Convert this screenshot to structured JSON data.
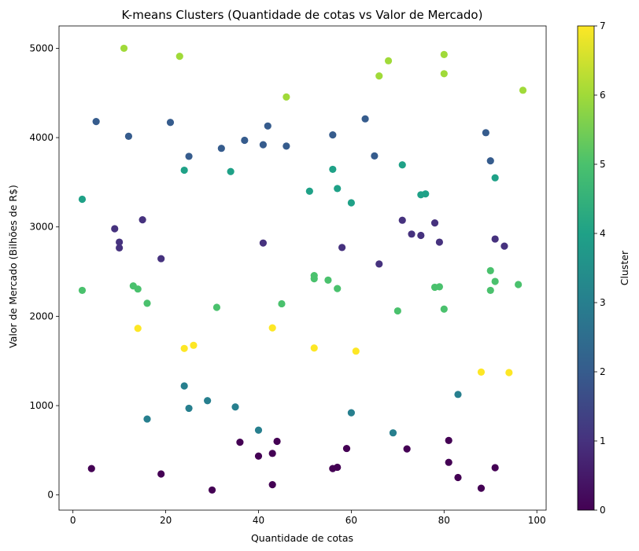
{
  "chart_data": {
    "type": "scatter",
    "title": "K-means Clusters (Quantidade de cotas vs Valor de Mercado)",
    "xlabel": "Quantidade de cotas",
    "ylabel": "Valor de Mercado (Bilhões de R$)",
    "xlim": [
      -3,
      102
    ],
    "ylim": [
      -170,
      5250
    ],
    "xticks": [
      0,
      20,
      40,
      60,
      80,
      100
    ],
    "yticks": [
      0,
      1000,
      2000,
      3000,
      4000,
      5000
    ],
    "grid": false,
    "colormap": "viridis",
    "colorbar": {
      "label": "Cluster",
      "min": 0,
      "max": 7,
      "ticks": [
        0,
        1,
        2,
        3,
        4,
        5,
        6,
        7
      ]
    },
    "points": [
      {
        "x": 4,
        "y": 295,
        "cluster": 0
      },
      {
        "x": 19,
        "y": 235,
        "cluster": 0
      },
      {
        "x": 30,
        "y": 55,
        "cluster": 0
      },
      {
        "x": 36,
        "y": 590,
        "cluster": 0
      },
      {
        "x": 40,
        "y": 435,
        "cluster": 0
      },
      {
        "x": 43,
        "y": 465,
        "cluster": 0
      },
      {
        "x": 43,
        "y": 115,
        "cluster": 0
      },
      {
        "x": 44,
        "y": 600,
        "cluster": 0
      },
      {
        "x": 56,
        "y": 295,
        "cluster": 0
      },
      {
        "x": 57,
        "y": 310,
        "cluster": 0
      },
      {
        "x": 59,
        "y": 520,
        "cluster": 0
      },
      {
        "x": 72,
        "y": 515,
        "cluster": 0
      },
      {
        "x": 81,
        "y": 610,
        "cluster": 0
      },
      {
        "x": 81,
        "y": 365,
        "cluster": 0
      },
      {
        "x": 83,
        "y": 195,
        "cluster": 0
      },
      {
        "x": 88,
        "y": 75,
        "cluster": 0
      },
      {
        "x": 91,
        "y": 305,
        "cluster": 0
      },
      {
        "x": 9,
        "y": 2980,
        "cluster": 1
      },
      {
        "x": 10,
        "y": 2830,
        "cluster": 1
      },
      {
        "x": 10,
        "y": 2765,
        "cluster": 1
      },
      {
        "x": 15,
        "y": 3080,
        "cluster": 1
      },
      {
        "x": 19,
        "y": 2645,
        "cluster": 1
      },
      {
        "x": 41,
        "y": 2820,
        "cluster": 1
      },
      {
        "x": 58,
        "y": 2770,
        "cluster": 1
      },
      {
        "x": 66,
        "y": 2585,
        "cluster": 1
      },
      {
        "x": 71,
        "y": 3075,
        "cluster": 1
      },
      {
        "x": 73,
        "y": 2920,
        "cluster": 1
      },
      {
        "x": 75,
        "y": 2905,
        "cluster": 1
      },
      {
        "x": 78,
        "y": 3045,
        "cluster": 1
      },
      {
        "x": 79,
        "y": 2830,
        "cluster": 1
      },
      {
        "x": 91,
        "y": 2865,
        "cluster": 1
      },
      {
        "x": 93,
        "y": 2785,
        "cluster": 1
      },
      {
        "x": 5,
        "y": 4180,
        "cluster": 2
      },
      {
        "x": 12,
        "y": 4015,
        "cluster": 2
      },
      {
        "x": 21,
        "y": 4170,
        "cluster": 2
      },
      {
        "x": 25,
        "y": 3790,
        "cluster": 2
      },
      {
        "x": 32,
        "y": 3880,
        "cluster": 2
      },
      {
        "x": 37,
        "y": 3970,
        "cluster": 2
      },
      {
        "x": 41,
        "y": 3920,
        "cluster": 2
      },
      {
        "x": 42,
        "y": 4130,
        "cluster": 2
      },
      {
        "x": 46,
        "y": 3905,
        "cluster": 2
      },
      {
        "x": 56,
        "y": 4030,
        "cluster": 2
      },
      {
        "x": 63,
        "y": 4210,
        "cluster": 2
      },
      {
        "x": 65,
        "y": 3795,
        "cluster": 2
      },
      {
        "x": 89,
        "y": 4055,
        "cluster": 2
      },
      {
        "x": 90,
        "y": 3740,
        "cluster": 2
      },
      {
        "x": 16,
        "y": 850,
        "cluster": 3
      },
      {
        "x": 24,
        "y": 1220,
        "cluster": 3
      },
      {
        "x": 25,
        "y": 970,
        "cluster": 3
      },
      {
        "x": 29,
        "y": 1055,
        "cluster": 3
      },
      {
        "x": 35,
        "y": 985,
        "cluster": 3
      },
      {
        "x": 40,
        "y": 725,
        "cluster": 3
      },
      {
        "x": 60,
        "y": 920,
        "cluster": 3
      },
      {
        "x": 69,
        "y": 695,
        "cluster": 3
      },
      {
        "x": 83,
        "y": 1125,
        "cluster": 3
      },
      {
        "x": 2,
        "y": 3310,
        "cluster": 4
      },
      {
        "x": 24,
        "y": 3635,
        "cluster": 4
      },
      {
        "x": 34,
        "y": 3620,
        "cluster": 4
      },
      {
        "x": 51,
        "y": 3400,
        "cluster": 4
      },
      {
        "x": 56,
        "y": 3645,
        "cluster": 4
      },
      {
        "x": 57,
        "y": 3430,
        "cluster": 4
      },
      {
        "x": 60,
        "y": 3270,
        "cluster": 4
      },
      {
        "x": 71,
        "y": 3695,
        "cluster": 4
      },
      {
        "x": 75,
        "y": 3360,
        "cluster": 4
      },
      {
        "x": 76,
        "y": 3370,
        "cluster": 4
      },
      {
        "x": 91,
        "y": 3550,
        "cluster": 4
      },
      {
        "x": 2,
        "y": 2290,
        "cluster": 5
      },
      {
        "x": 13,
        "y": 2340,
        "cluster": 5
      },
      {
        "x": 14,
        "y": 2305,
        "cluster": 5
      },
      {
        "x": 16,
        "y": 2145,
        "cluster": 5
      },
      {
        "x": 31,
        "y": 2100,
        "cluster": 5
      },
      {
        "x": 45,
        "y": 2140,
        "cluster": 5
      },
      {
        "x": 52,
        "y": 2455,
        "cluster": 5
      },
      {
        "x": 52,
        "y": 2420,
        "cluster": 5
      },
      {
        "x": 55,
        "y": 2405,
        "cluster": 5
      },
      {
        "x": 57,
        "y": 2310,
        "cluster": 5
      },
      {
        "x": 70,
        "y": 2060,
        "cluster": 5
      },
      {
        "x": 78,
        "y": 2325,
        "cluster": 5
      },
      {
        "x": 79,
        "y": 2330,
        "cluster": 5
      },
      {
        "x": 80,
        "y": 2080,
        "cluster": 5
      },
      {
        "x": 90,
        "y": 2510,
        "cluster": 5
      },
      {
        "x": 90,
        "y": 2290,
        "cluster": 5
      },
      {
        "x": 91,
        "y": 2390,
        "cluster": 5
      },
      {
        "x": 96,
        "y": 2355,
        "cluster": 5
      },
      {
        "x": 11,
        "y": 5000,
        "cluster": 6
      },
      {
        "x": 23,
        "y": 4910,
        "cluster": 6
      },
      {
        "x": 46,
        "y": 4455,
        "cluster": 6
      },
      {
        "x": 66,
        "y": 4690,
        "cluster": 6
      },
      {
        "x": 68,
        "y": 4860,
        "cluster": 6
      },
      {
        "x": 80,
        "y": 4930,
        "cluster": 6
      },
      {
        "x": 80,
        "y": 4715,
        "cluster": 6
      },
      {
        "x": 97,
        "y": 4530,
        "cluster": 6
      },
      {
        "x": 14,
        "y": 1865,
        "cluster": 7
      },
      {
        "x": 24,
        "y": 1640,
        "cluster": 7
      },
      {
        "x": 26,
        "y": 1675,
        "cluster": 7
      },
      {
        "x": 43,
        "y": 1870,
        "cluster": 7
      },
      {
        "x": 52,
        "y": 1645,
        "cluster": 7
      },
      {
        "x": 61,
        "y": 1610,
        "cluster": 7
      },
      {
        "x": 88,
        "y": 1375,
        "cluster": 7
      },
      {
        "x": 94,
        "y": 1370,
        "cluster": 7
      }
    ]
  }
}
